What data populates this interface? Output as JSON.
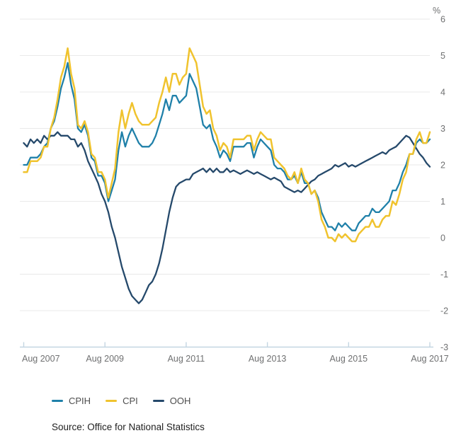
{
  "page": {
    "background": "#ffffff"
  },
  "colors": {
    "gridline": "#e9e9e9",
    "axis_line": "#c4d6e2",
    "axis_text": "#6f7071",
    "legend_text": "#4d4d4d",
    "source_text": "#1f1f1f"
  },
  "chart_data": {
    "type": "line",
    "title": "",
    "unit_label": "%",
    "frequency": "monthly",
    "x_tick_labels": [
      "Aug 2007",
      "Aug 2009",
      "Aug 2011",
      "Aug 2013",
      "Aug 2015",
      "Aug 2017"
    ],
    "x_tick_month_indices": [
      0,
      24,
      48,
      72,
      96,
      120
    ],
    "x_range_months": 120,
    "ylim": [
      -3,
      6
    ],
    "y_ticks": [
      6,
      5,
      4,
      3,
      2,
      1,
      0,
      -1,
      -2,
      -3
    ],
    "grid": "horizontal",
    "legend_position": "bottom-left",
    "draw_order": [
      "OOH",
      "CPIH",
      "CPI"
    ],
    "series": [
      {
        "name": "CPIH",
        "color": "#1f80a9",
        "values": [
          2.0,
          2.0,
          2.2,
          2.2,
          2.2,
          2.3,
          2.5,
          2.6,
          3.0,
          3.2,
          3.6,
          4.1,
          4.4,
          4.8,
          4.2,
          3.8,
          3.0,
          2.9,
          3.1,
          2.8,
          2.2,
          2.1,
          1.7,
          1.7,
          1.5,
          1.0,
          1.3,
          1.6,
          2.4,
          2.9,
          2.5,
          2.8,
          3.0,
          2.8,
          2.6,
          2.5,
          2.5,
          2.5,
          2.6,
          2.8,
          3.1,
          3.4,
          3.8,
          3.5,
          3.9,
          3.9,
          3.7,
          3.8,
          3.9,
          4.5,
          4.3,
          4.1,
          3.6,
          3.1,
          3.0,
          3.1,
          2.7,
          2.5,
          2.2,
          2.4,
          2.3,
          2.1,
          2.5,
          2.5,
          2.5,
          2.5,
          2.6,
          2.6,
          2.2,
          2.5,
          2.7,
          2.6,
          2.5,
          2.4,
          2.0,
          1.9,
          1.9,
          1.8,
          1.6,
          1.6,
          1.7,
          1.5,
          1.8,
          1.5,
          1.5,
          1.2,
          1.3,
          1.1,
          0.7,
          0.5,
          0.3,
          0.3,
          0.2,
          0.4,
          0.3,
          0.4,
          0.3,
          0.2,
          0.2,
          0.4,
          0.5,
          0.6,
          0.6,
          0.8,
          0.7,
          0.7,
          0.8,
          0.9,
          1.0,
          1.3,
          1.3,
          1.5,
          1.8,
          2.0,
          2.3,
          2.3,
          2.6,
          2.7,
          2.6,
          2.6,
          2.7
        ]
      },
      {
        "name": "CPI",
        "color": "#f0c32e",
        "values": [
          1.8,
          1.8,
          2.1,
          2.1,
          2.1,
          2.2,
          2.5,
          2.5,
          3.0,
          3.3,
          3.8,
          4.4,
          4.7,
          5.2,
          4.5,
          4.1,
          3.1,
          3.0,
          3.2,
          2.9,
          2.3,
          2.2,
          1.8,
          1.8,
          1.6,
          1.1,
          1.5,
          1.9,
          2.9,
          3.5,
          3.0,
          3.4,
          3.7,
          3.4,
          3.2,
          3.1,
          3.1,
          3.1,
          3.2,
          3.3,
          3.7,
          4.0,
          4.4,
          4.0,
          4.5,
          4.5,
          4.2,
          4.4,
          4.5,
          5.2,
          5.0,
          4.8,
          4.2,
          3.6,
          3.4,
          3.5,
          3.0,
          2.8,
          2.4,
          2.6,
          2.5,
          2.2,
          2.7,
          2.7,
          2.7,
          2.7,
          2.8,
          2.8,
          2.4,
          2.7,
          2.9,
          2.8,
          2.7,
          2.7,
          2.2,
          2.1,
          2.0,
          1.9,
          1.7,
          1.6,
          1.8,
          1.5,
          1.9,
          1.6,
          1.5,
          1.2,
          1.3,
          1.0,
          0.5,
          0.3,
          0.0,
          0.0,
          -0.1,
          0.1,
          0.0,
          0.1,
          0.0,
          -0.1,
          -0.1,
          0.1,
          0.2,
          0.3,
          0.3,
          0.5,
          0.3,
          0.3,
          0.5,
          0.6,
          0.6,
          1.0,
          0.9,
          1.2,
          1.6,
          1.8,
          2.3,
          2.3,
          2.7,
          2.9,
          2.6,
          2.6,
          2.9
        ]
      },
      {
        "name": "OOH",
        "color": "#25496b",
        "values": [
          2.6,
          2.5,
          2.7,
          2.6,
          2.7,
          2.6,
          2.8,
          2.7,
          2.8,
          2.8,
          2.9,
          2.8,
          2.8,
          2.8,
          2.7,
          2.7,
          2.5,
          2.6,
          2.4,
          2.1,
          1.9,
          1.7,
          1.5,
          1.2,
          1.0,
          0.7,
          0.3,
          0.0,
          -0.4,
          -0.8,
          -1.1,
          -1.4,
          -1.6,
          -1.7,
          -1.8,
          -1.7,
          -1.5,
          -1.3,
          -1.2,
          -1.0,
          -0.7,
          -0.3,
          0.2,
          0.7,
          1.1,
          1.4,
          1.5,
          1.55,
          1.6,
          1.6,
          1.75,
          1.8,
          1.85,
          1.9,
          1.8,
          1.9,
          1.8,
          1.9,
          1.8,
          1.8,
          1.9,
          1.8,
          1.85,
          1.8,
          1.75,
          1.8,
          1.85,
          1.8,
          1.75,
          1.8,
          1.75,
          1.7,
          1.65,
          1.6,
          1.65,
          1.6,
          1.55,
          1.4,
          1.35,
          1.3,
          1.25,
          1.3,
          1.25,
          1.35,
          1.45,
          1.55,
          1.6,
          1.7,
          1.75,
          1.8,
          1.85,
          1.9,
          2.0,
          1.95,
          2.0,
          2.05,
          1.95,
          2.0,
          1.95,
          2.0,
          2.05,
          2.1,
          2.15,
          2.2,
          2.25,
          2.3,
          2.35,
          2.3,
          2.4,
          2.45,
          2.5,
          2.6,
          2.7,
          2.8,
          2.75,
          2.6,
          2.45,
          2.3,
          2.2,
          2.05,
          1.95
        ]
      }
    ]
  },
  "legend": {
    "items": [
      {
        "label": "CPIH"
      },
      {
        "label": "CPI"
      },
      {
        "label": "OOH"
      }
    ]
  },
  "source_note": "Source: Office for National Statistics"
}
